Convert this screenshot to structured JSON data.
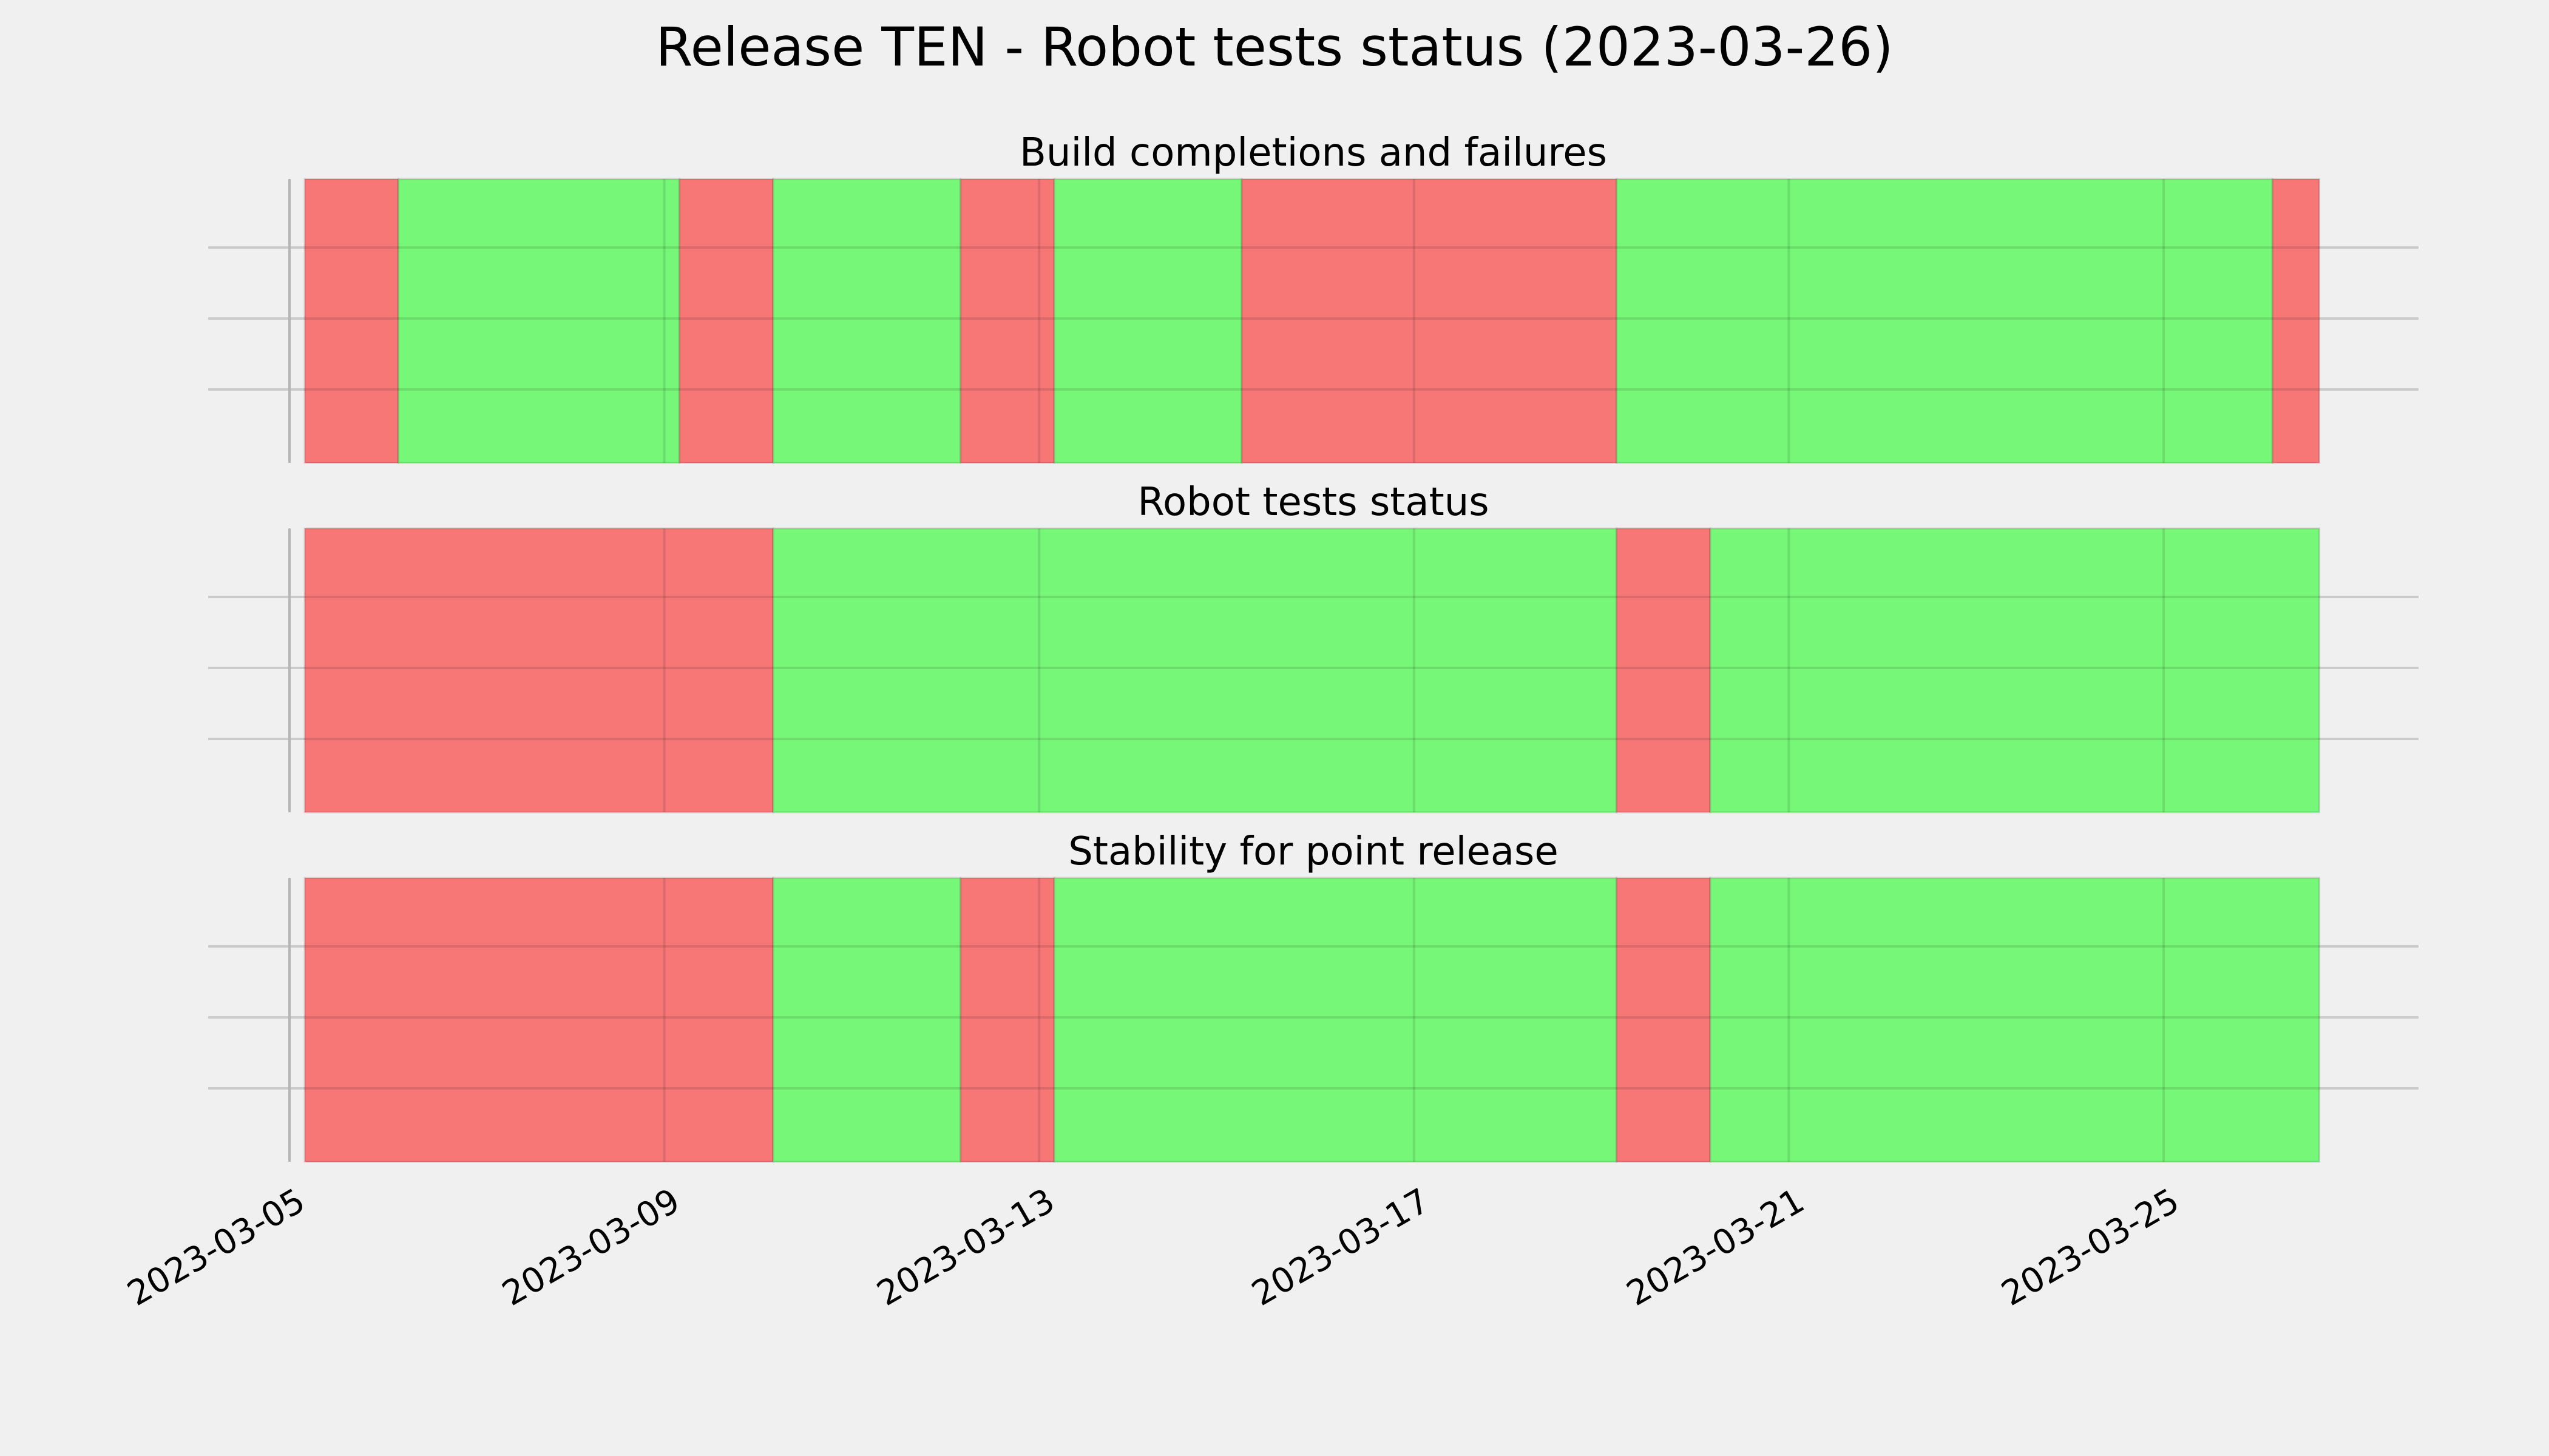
{
  "figure": {
    "title": "Release TEN - Robot tests status (2023-03-26)"
  },
  "colors": {
    "background": "#f0f0f0",
    "pass": "#77f777",
    "fail": "#f77777",
    "grid": "#cbcbcb"
  },
  "chart_data": [
    {
      "type": "timeline",
      "title": "Build completions and failures",
      "xlim": [
        "2023-03-05",
        "2023-03-27"
      ],
      "xticks": [
        "2023-03-05",
        "2023-03-09",
        "2023-03-13",
        "2023-03-17",
        "2023-03-21",
        "2023-03-25"
      ],
      "grid": true,
      "segments": [
        {
          "start": "2023-03-05",
          "end": "2023-03-06",
          "status": "fail"
        },
        {
          "start": "2023-03-06",
          "end": "2023-03-09",
          "status": "pass"
        },
        {
          "start": "2023-03-09",
          "end": "2023-03-10",
          "status": "fail"
        },
        {
          "start": "2023-03-10",
          "end": "2023-03-12",
          "status": "pass"
        },
        {
          "start": "2023-03-12",
          "end": "2023-03-13",
          "status": "fail"
        },
        {
          "start": "2023-03-13",
          "end": "2023-03-15",
          "status": "pass"
        },
        {
          "start": "2023-03-15",
          "end": "2023-03-19",
          "status": "fail"
        },
        {
          "start": "2023-03-19",
          "end": "2023-03-26",
          "status": "pass"
        },
        {
          "start": "2023-03-26",
          "end": "2023-03-26T12:00",
          "status": "fail"
        }
      ]
    },
    {
      "type": "timeline",
      "title": "Robot tests status",
      "xlim": [
        "2023-03-05",
        "2023-03-27"
      ],
      "xticks": [
        "2023-03-05",
        "2023-03-09",
        "2023-03-13",
        "2023-03-17",
        "2023-03-21",
        "2023-03-25"
      ],
      "grid": true,
      "segments": [
        {
          "start": "2023-03-05",
          "end": "2023-03-10",
          "status": "fail"
        },
        {
          "start": "2023-03-10",
          "end": "2023-03-19",
          "status": "pass"
        },
        {
          "start": "2023-03-19",
          "end": "2023-03-20",
          "status": "fail"
        },
        {
          "start": "2023-03-20",
          "end": "2023-03-26T12:00",
          "status": "pass"
        }
      ]
    },
    {
      "type": "timeline",
      "title": "Stability for point release",
      "xlim": [
        "2023-03-05",
        "2023-03-27"
      ],
      "xticks": [
        "2023-03-05",
        "2023-03-09",
        "2023-03-13",
        "2023-03-17",
        "2023-03-21",
        "2023-03-25"
      ],
      "grid": true,
      "segments": [
        {
          "start": "2023-03-05",
          "end": "2023-03-10",
          "status": "fail"
        },
        {
          "start": "2023-03-10",
          "end": "2023-03-12",
          "status": "pass"
        },
        {
          "start": "2023-03-12",
          "end": "2023-03-13",
          "status": "fail"
        },
        {
          "start": "2023-03-13",
          "end": "2023-03-19",
          "status": "pass"
        },
        {
          "start": "2023-03-19",
          "end": "2023-03-20",
          "status": "fail"
        },
        {
          "start": "2023-03-20",
          "end": "2023-03-26T12:00",
          "status": "pass"
        }
      ]
    }
  ]
}
